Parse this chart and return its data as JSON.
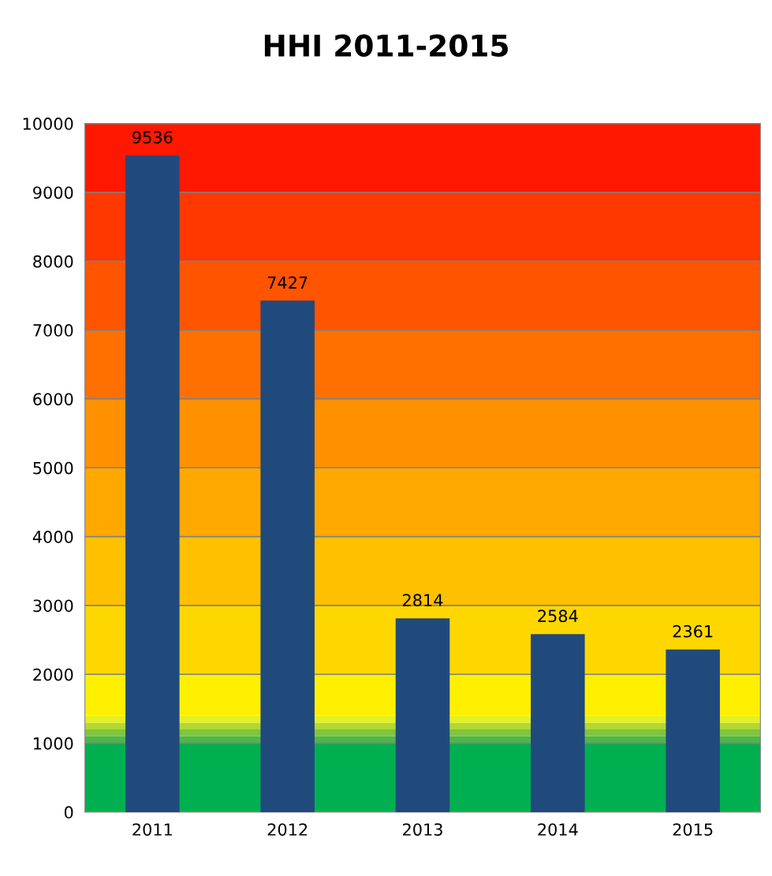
{
  "chart_data": {
    "type": "bar",
    "title": "HHI 2011-2015",
    "categories": [
      "2011",
      "2012",
      "2013",
      "2014",
      "2015"
    ],
    "values": [
      9536,
      7427,
      2814,
      2584,
      2361
    ],
    "color": "#214a7c",
    "ylim": [
      0,
      10000
    ],
    "yticks": [
      0,
      1000,
      2000,
      3000,
      4000,
      5000,
      6000,
      7000,
      8000,
      9000,
      10000
    ],
    "grid": "y",
    "data_labels": true,
    "bands": [
      {
        "axis": "y",
        "from": 0,
        "to": 1000,
        "color": "#00b050"
      },
      {
        "axis": "y",
        "from": 1000,
        "to": 1100,
        "color": "#4db848"
      },
      {
        "axis": "y",
        "from": 1100,
        "to": 1200,
        "color": "#80c440"
      },
      {
        "axis": "y",
        "from": 1200,
        "to": 1300,
        "color": "#b3d830"
      },
      {
        "axis": "y",
        "from": 1300,
        "to": 1400,
        "color": "#e6f020"
      },
      {
        "axis": "y",
        "from": 1400,
        "to": 2000,
        "color": "#fff000"
      },
      {
        "axis": "y",
        "from": 2000,
        "to": 3000,
        "color": "#ffd700"
      },
      {
        "axis": "y",
        "from": 3000,
        "to": 4000,
        "color": "#ffc000"
      },
      {
        "axis": "y",
        "from": 4000,
        "to": 5000,
        "color": "#ffa800"
      },
      {
        "axis": "y",
        "from": 5000,
        "to": 6000,
        "color": "#ff9000"
      },
      {
        "axis": "y",
        "from": 6000,
        "to": 7000,
        "color": "#ff7000"
      },
      {
        "axis": "y",
        "from": 7000,
        "to": 8000,
        "color": "#ff5400"
      },
      {
        "axis": "y",
        "from": 8000,
        "to": 9000,
        "color": "#ff3800"
      },
      {
        "axis": "y",
        "from": 9000,
        "to": 10000,
        "color": "#ff1800"
      }
    ]
  }
}
